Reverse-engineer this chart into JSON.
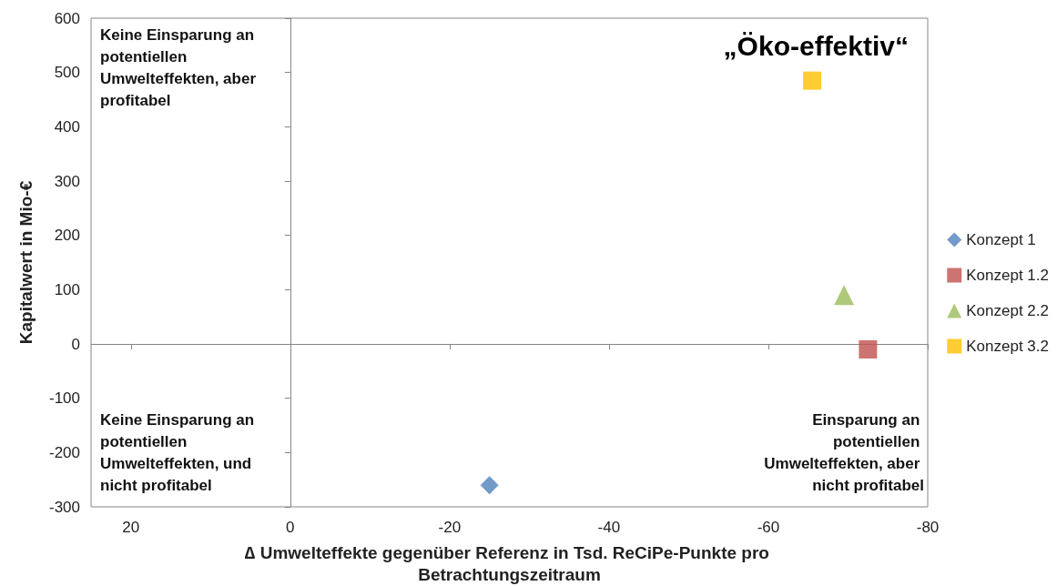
{
  "chart_data": {
    "type": "scatter",
    "title": "„Öko-effektiv“",
    "xlabel": "∆ Umwelteffekte gegenüber Referenz in Tsd. ReCiPe-Punkte pro Betrachtungszeitraum",
    "ylabel": "Kapitalwert in Mio-€",
    "xlim": [
      25,
      -80
    ],
    "xticks": [
      20,
      0,
      -20,
      -40,
      -60,
      -80
    ],
    "ylim": [
      -300,
      600
    ],
    "yticks": [
      -300,
      -200,
      -100,
      0,
      100,
      200,
      300,
      400,
      500,
      600
    ],
    "series": [
      {
        "name": "Konzept 1",
        "color": "#4f81bd",
        "marker": "diamond",
        "x": [
          -25
        ],
        "values": [
          -260
        ]
      },
      {
        "name": "Konzept 1.2",
        "color": "#c0504d",
        "marker": "square",
        "x": [
          -72.5
        ],
        "values": [
          -10
        ]
      },
      {
        "name": "Konzept 2.2",
        "color": "#9bbb59",
        "marker": "triangle",
        "x": [
          -69.5
        ],
        "values": [
          90
        ]
      },
      {
        "name": "Konzept 3.2",
        "color": "#ffc000",
        "marker": "square",
        "x": [
          -65.5
        ],
        "values": [
          485
        ]
      }
    ],
    "annotations": [
      "Keine Einsparung an potentiellen Umwelteffekten, aber profitabel",
      "Keine Einsparung an potentiellen Umwelteffekten, und nicht profitabel",
      "Einsparung an potentiellen Umwelteffekten, aber nicht profitabel"
    ],
    "legend": "right"
  }
}
